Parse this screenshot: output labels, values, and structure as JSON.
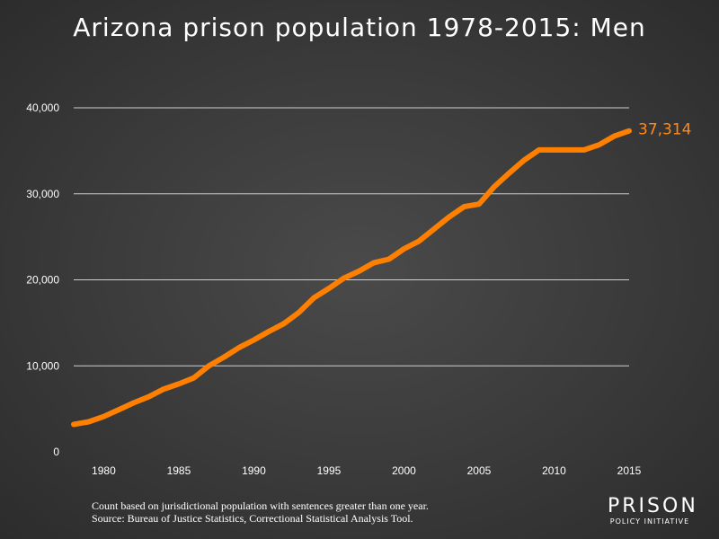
{
  "title": "Arizona prison population 1978-2015: Men",
  "footnote": {
    "line1": "Count based on jurisdictional population with sentences greater than one year.",
    "line2": "Source: Bureau of Justice Statistics, Correctional Statistical Analysis Tool."
  },
  "logo": {
    "line1": "PRISON",
    "line2": "POLICY INITIATIVE"
  },
  "colors": {
    "line": "#ff7f00",
    "end_label": "#ff8a1c",
    "grid": "#cfcfcf",
    "text": "#ffffff"
  },
  "chart_data": {
    "type": "line",
    "title": "Arizona prison population 1978-2015: Men",
    "xlabel": "",
    "ylabel": "",
    "xlim": [
      1978,
      2015
    ],
    "ylim": [
      0,
      40000
    ],
    "x_ticks": [
      1980,
      1985,
      1990,
      1995,
      2000,
      2005,
      2010,
      2015
    ],
    "x_tick_labels": [
      "1980",
      "1985",
      "1990",
      "1995",
      "2000",
      "2005",
      "2010",
      "2015"
    ],
    "y_ticks": [
      0,
      10000,
      20000,
      30000,
      40000
    ],
    "y_tick_labels": [
      "0",
      "10,000",
      "20,000",
      "30,000",
      "40,000"
    ],
    "grid": "horizontal",
    "end_label": "37,314",
    "series": [
      {
        "x": [
          1978,
          1979,
          1980,
          1981,
          1982,
          1983,
          1984,
          1985,
          1986,
          1987,
          1988,
          1989,
          1990,
          1991,
          1992,
          1993,
          1994,
          1995,
          1996,
          1997,
          1998,
          1999,
          2000,
          2001,
          2002,
          2003,
          2004,
          2005,
          2006,
          2007,
          2008,
          2009,
          2010,
          2011,
          2012,
          2013,
          2014,
          2015
        ],
        "y": [
          3200,
          3500,
          4100,
          4900,
          5700,
          6400,
          7300,
          7900,
          8600,
          10000,
          11000,
          12100,
          13000,
          14000,
          14900,
          16200,
          17900,
          19000,
          20200,
          21000,
          22000,
          22400,
          23600,
          24500,
          25900,
          27300,
          28500,
          28800,
          30800,
          32400,
          33900,
          35100,
          35100,
          35100,
          35100,
          35700,
          36700,
          37314
        ]
      }
    ]
  }
}
